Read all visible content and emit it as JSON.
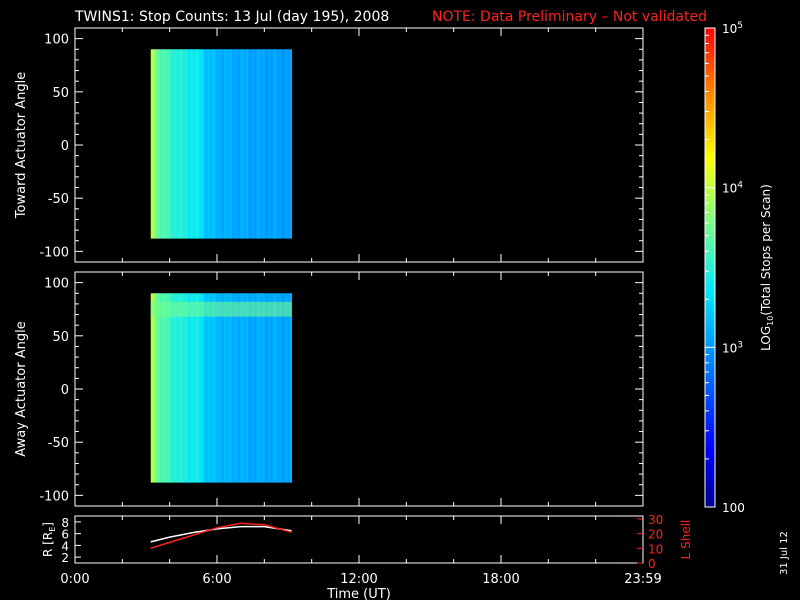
{
  "title": "TWINS1: Stop Counts: 13 Jul (day 195), 2008",
  "note": "NOTE: Data Preliminary – Not validated",
  "colors": {
    "background": "#000000",
    "axes": "#ffffff",
    "note": "#ff2020",
    "lshell": "#ff2020",
    "radius": "#ffffff"
  },
  "datestamp": "31 Jul 12",
  "chart_data": [
    {
      "type": "heatmap",
      "ylabel": "Toward Actuator Angle",
      "xlim": [
        0,
        24
      ],
      "ylim": [
        -110,
        110
      ],
      "yticks": [
        -100,
        -50,
        0,
        50,
        100
      ],
      "data_x_range": [
        3.2,
        9.15
      ],
      "data_y_range": [
        -88,
        90
      ],
      "column_profile_log10": [
        [
          3.2,
          3.95
        ],
        [
          3.5,
          3.7
        ],
        [
          4.0,
          3.55
        ],
        [
          4.6,
          3.45
        ],
        [
          5.2,
          3.38
        ],
        [
          5.5,
          3.2
        ],
        [
          6.0,
          3.12
        ],
        [
          7.0,
          3.08
        ],
        [
          8.0,
          3.05
        ],
        [
          9.15,
          3.02
        ]
      ],
      "features": []
    },
    {
      "type": "heatmap",
      "ylabel": "Away Actuator Angle",
      "xlim": [
        0,
        24
      ],
      "ylim": [
        -110,
        110
      ],
      "yticks": [
        -100,
        -50,
        0,
        50,
        100
      ],
      "data_x_range": [
        3.2,
        9.15
      ],
      "data_y_range": [
        -88,
        90
      ],
      "column_profile_log10": [
        [
          3.2,
          3.95
        ],
        [
          3.5,
          3.7
        ],
        [
          4.0,
          3.55
        ],
        [
          4.6,
          3.45
        ],
        [
          5.2,
          3.4
        ],
        [
          5.5,
          3.22
        ],
        [
          6.0,
          3.14
        ],
        [
          7.0,
          3.1
        ],
        [
          8.0,
          3.08
        ],
        [
          9.15,
          3.05
        ]
      ],
      "features": [
        {
          "type": "band",
          "y_range": [
            68,
            82
          ],
          "x_range": [
            3.2,
            9.15
          ],
          "log10": 3.75
        }
      ]
    },
    {
      "type": "line",
      "xlabel": "Time (UT)",
      "xlim": [
        0,
        24
      ],
      "xticks": [
        0,
        6,
        12,
        18,
        24
      ],
      "xticklabels": [
        "0:00",
        "6:00",
        "12:00",
        "18:00",
        "23:59"
      ],
      "ylabel_left": "R [R",
      "ylabel_left_sub": "E",
      "ylabel_left_end": "]",
      "ylim_left": [
        1,
        9
      ],
      "yticks_left": [
        2,
        4,
        6,
        8
      ],
      "ylabel_right": "L Shell",
      "ylim_right": [
        0,
        32
      ],
      "yticks_right": [
        0,
        10,
        20,
        30
      ],
      "series": [
        {
          "axis": "left",
          "color": "#ffffff",
          "x": [
            3.2,
            4,
            5,
            6,
            7,
            8,
            9.15
          ],
          "y": [
            4.6,
            5.4,
            6.2,
            6.8,
            7.2,
            7.2,
            6.5
          ]
        },
        {
          "axis": "right",
          "color": "#ff2020",
          "x": [
            3.2,
            4,
            5,
            6,
            7,
            8,
            9.15
          ],
          "y": [
            10,
            14,
            19,
            24,
            27,
            26,
            21
          ]
        }
      ]
    }
  ],
  "colorbar": {
    "label_prefix": "LOG",
    "label_sub": "10",
    "label_suffix": "(Total Stops per Scan)",
    "range_log10": [
      2,
      5
    ],
    "ticks": [
      {
        "log10": 5,
        "base": "10",
        "exp": "5"
      },
      {
        "log10": 4,
        "base": "10",
        "exp": "4"
      },
      {
        "log10": 3,
        "base": "10",
        "exp": "3"
      },
      {
        "log10": 2,
        "text": "100"
      }
    ]
  }
}
